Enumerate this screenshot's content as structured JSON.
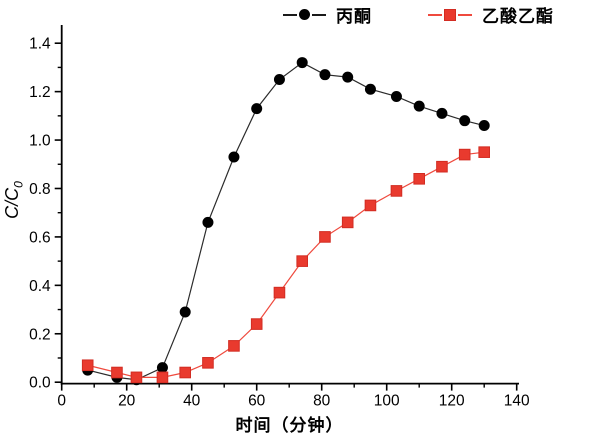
{
  "chart_data": {
    "type": "line",
    "title": "",
    "xlabel": "时间（分钟）",
    "ylabel": "C/C0",
    "ylabel_parts": {
      "main": "C/C",
      "sub": "0"
    },
    "xlim": [
      0,
      140
    ],
    "ylim": [
      0,
      1.4
    ],
    "x_ticks": [
      0,
      20,
      40,
      60,
      80,
      100,
      120,
      140
    ],
    "y_ticks": [
      0.0,
      0.2,
      0.4,
      0.6,
      0.8,
      1.0,
      1.2,
      1.4
    ],
    "x_minor_step": 10,
    "y_minor_step": 0.1,
    "grid": false,
    "legend_position": "top",
    "x": [
      8,
      17,
      23,
      31,
      38,
      45,
      53,
      60,
      67,
      74,
      81,
      88,
      95,
      103,
      110,
      117,
      124,
      130
    ],
    "series": [
      {
        "name": "丙酮",
        "marker": "circle",
        "color": "#000000",
        "line_color": "#2b2b2b",
        "values": [
          0.05,
          0.02,
          0.01,
          0.06,
          0.29,
          0.66,
          0.93,
          1.13,
          1.25,
          1.32,
          1.27,
          1.26,
          1.21,
          1.18,
          1.14,
          1.11,
          1.08,
          1.06
        ]
      },
      {
        "name": "乙酸乙酯",
        "marker": "square",
        "color": "#e93a2e",
        "line_color": "#ef4a3e",
        "values": [
          0.07,
          0.04,
          0.02,
          0.02,
          0.04,
          0.08,
          0.15,
          0.24,
          0.37,
          0.5,
          0.6,
          0.66,
          0.73,
          0.79,
          0.84,
          0.89,
          0.94,
          0.95
        ]
      }
    ]
  },
  "colors": {
    "axis": "#000000",
    "background": "#ffffff",
    "series_acetone": "#000000",
    "series_ethyl_acetate": "#e93a2e"
  }
}
